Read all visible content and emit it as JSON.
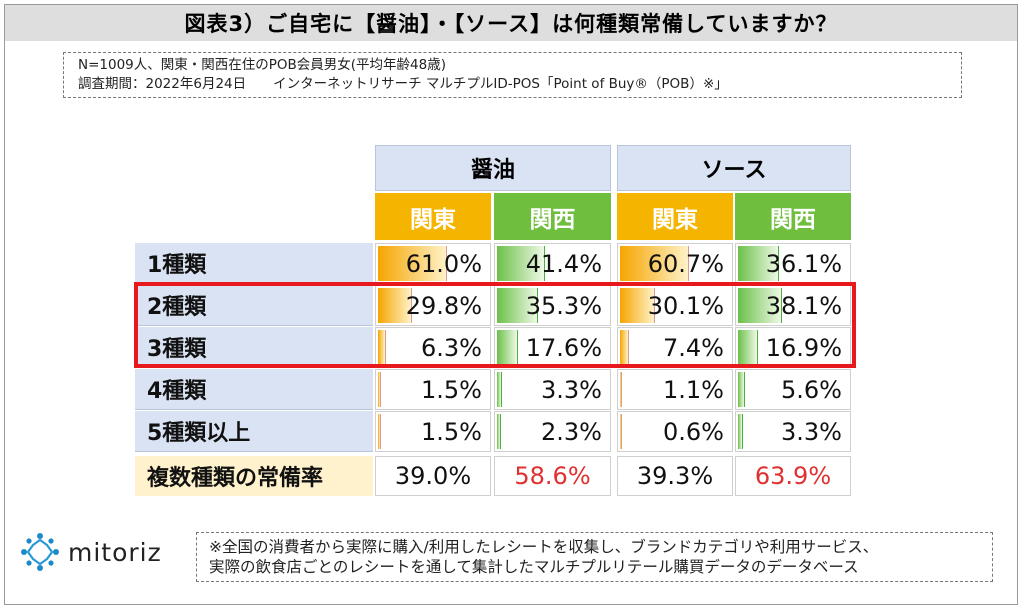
{
  "title": "図表3）ご自宅に【醤油】・【ソース】は何種類常備していますか？",
  "info": {
    "line1": "N=1009人、関東・関西在住のPOB会員男女(平均年齢48歳)",
    "line2": "調査期間：2022年6月24日　　インターネットリサーチ マルチプルID-POS「Point of Buy®（POB）※」"
  },
  "groups": [
    "醤油",
    "ソース"
  ],
  "regions": [
    "関東",
    "関西"
  ],
  "chart_data": {
    "type": "table",
    "categories": [
      "1種類",
      "2種類",
      "3種類",
      "4種類",
      "5種類以上"
    ],
    "series": [
      {
        "values": [
          61.0,
          29.8,
          6.3,
          1.5,
          1.5
        ]
      },
      {
        "values": [
          41.4,
          35.3,
          17.6,
          3.3,
          2.3
        ]
      },
      {
        "values": [
          60.7,
          30.1,
          7.4,
          1.1,
          0.6
        ]
      },
      {
        "values": [
          36.1,
          38.1,
          16.9,
          5.6,
          3.3
        ]
      }
    ],
    "display": [
      [
        "61.0%",
        "41.4%",
        "60.7%",
        "36.1%"
      ],
      [
        "29.8%",
        "35.3%",
        "30.1%",
        "38.1%"
      ],
      [
        "6.3%",
        "17.6%",
        "7.4%",
        "16.9%"
      ],
      [
        "1.5%",
        "3.3%",
        "1.1%",
        "5.6%"
      ],
      [
        "1.5%",
        "2.3%",
        "0.6%",
        "3.3%"
      ]
    ],
    "total": {
      "label": "複数種類の常備率",
      "values": [
        "39.0%",
        "58.6%",
        "39.3%",
        "63.9%"
      ]
    },
    "highlighted_rows": [
      "2種類",
      "3種類"
    ],
    "colors": {
      "kanto": "#f5b400",
      "kansai": "#6fbe3e",
      "highlight": "#e8191c",
      "total_emphasis": "#e03030"
    }
  },
  "logo": {
    "text": "mitoriz"
  },
  "note": {
    "line1": "※全国の消費者から実際に購入/利用したレシートを収集し、ブランドカテゴリや利用サービス、",
    "line2": "実際の飲食店ごとのレシートを通して集計したマルチプルリテール購買データのデータベース"
  }
}
